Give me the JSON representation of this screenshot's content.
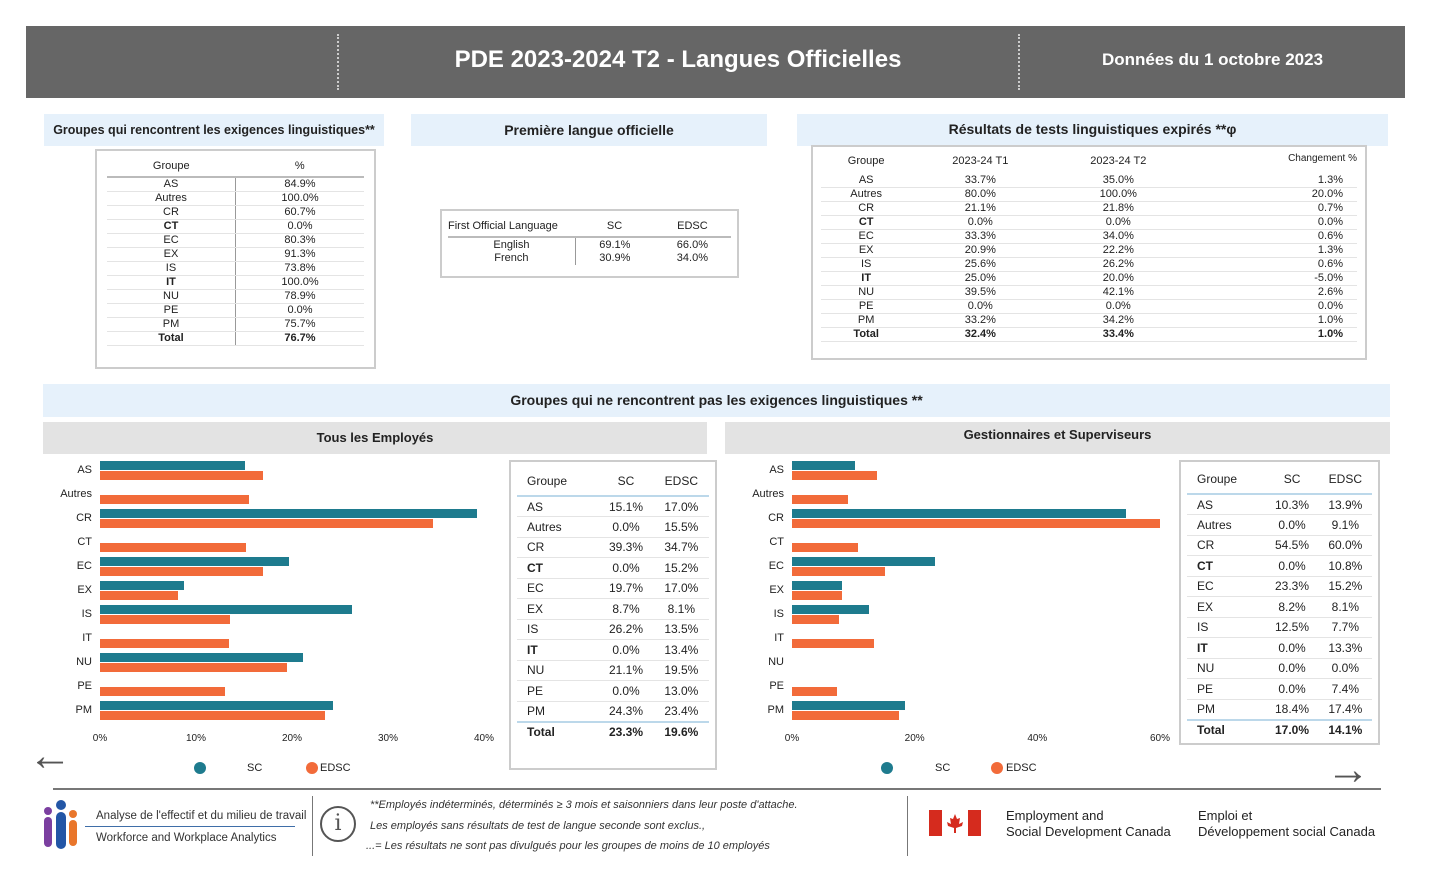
{
  "header": {
    "title": "PDE 2023-2024 T2 - Langues Officielles",
    "date": "Données du 1 octobre 2023"
  },
  "colors": {
    "sc": "#1e7b8e",
    "edsc": "#f26b3a",
    "header_bg": "#666666",
    "panel_bg": "#e6f1fb"
  },
  "meets": {
    "title": "Groupes qui rencontrent les exigences linguistiques**",
    "col_group": "Groupe",
    "col_pct": "%",
    "rows": [
      [
        "AS",
        "84.9%"
      ],
      [
        "Autres",
        "100.0%"
      ],
      [
        "CR",
        "60.7%"
      ],
      [
        "CT",
        "0.0%"
      ],
      [
        "EC",
        "80.3%"
      ],
      [
        "EX",
        "91.3%"
      ],
      [
        "IS",
        "73.8%"
      ],
      [
        "IT",
        "100.0%"
      ],
      [
        "NU",
        "78.9%"
      ],
      [
        "PE",
        "0.0%"
      ],
      [
        "PM",
        "75.7%"
      ],
      [
        "Total",
        "76.7%"
      ]
    ]
  },
  "first_lang": {
    "title": "Première langue officielle",
    "col_lang": "First Official Language",
    "col_sc": "SC",
    "col_edsc": "EDSC",
    "rows": [
      [
        "English",
        "69.1%",
        "66.0%"
      ],
      [
        "French",
        "30.9%",
        "34.0%"
      ]
    ]
  },
  "expired": {
    "title": "Résultats de tests linguistiques expirés **φ",
    "cols": [
      "Groupe",
      "2023-24 T1",
      "2023-24 T2",
      "Changement %"
    ],
    "rows": [
      [
        "AS",
        "33.7%",
        "35.0%",
        "1.3%"
      ],
      [
        "Autres",
        "80.0%",
        "100.0%",
        "20.0%"
      ],
      [
        "CR",
        "21.1%",
        "21.8%",
        "0.7%"
      ],
      [
        "CT",
        "0.0%",
        "0.0%",
        "0.0%"
      ],
      [
        "EC",
        "33.3%",
        "34.0%",
        "0.6%"
      ],
      [
        "EX",
        "20.9%",
        "22.2%",
        "1.3%"
      ],
      [
        "IS",
        "25.6%",
        "26.2%",
        "0.6%"
      ],
      [
        "IT",
        "25.0%",
        "20.0%",
        "-5.0%"
      ],
      [
        "NU",
        "39.5%",
        "42.1%",
        "2.6%"
      ],
      [
        "PE",
        "0.0%",
        "0.0%",
        "0.0%"
      ],
      [
        "PM",
        "33.2%",
        "34.2%",
        "1.0%"
      ],
      [
        "Total",
        "32.4%",
        "33.4%",
        "1.0%"
      ]
    ]
  },
  "not_meet": {
    "title": "Groupes qui ne rencontrent pas les exigences linguistiques **"
  },
  "chart_data": [
    {
      "type": "bar",
      "title": "Tous les Employés",
      "categories": [
        "AS",
        "Autres",
        "CR",
        "CT",
        "EC",
        "EX",
        "IS",
        "IT",
        "NU",
        "PE",
        "PM"
      ],
      "series": [
        {
          "name": "SC",
          "values": [
            15.1,
            0.0,
            39.3,
            0.0,
            19.7,
            8.7,
            26.2,
            0.0,
            21.1,
            0.0,
            24.3
          ]
        },
        {
          "name": "EDSC",
          "values": [
            17.0,
            15.5,
            34.7,
            15.2,
            17.0,
            8.1,
            13.5,
            13.4,
            19.5,
            13.0,
            23.4
          ]
        }
      ],
      "xlim": [
        0,
        40
      ],
      "xticks": [
        "0%",
        "10%",
        "20%",
        "30%",
        "40%"
      ],
      "legend": "bottom",
      "table": {
        "cols": [
          "Groupe",
          "SC",
          "EDSC"
        ],
        "rows": [
          [
            "AS",
            "15.1%",
            "17.0%"
          ],
          [
            "Autres",
            "0.0%",
            "15.5%"
          ],
          [
            "CR",
            "39.3%",
            "34.7%"
          ],
          [
            "CT",
            "0.0%",
            "15.2%"
          ],
          [
            "EC",
            "19.7%",
            "17.0%"
          ],
          [
            "EX",
            "8.7%",
            "8.1%"
          ],
          [
            "IS",
            "26.2%",
            "13.5%"
          ],
          [
            "IT",
            "0.0%",
            "13.4%"
          ],
          [
            "NU",
            "21.1%",
            "19.5%"
          ],
          [
            "PE",
            "0.0%",
            "13.0%"
          ],
          [
            "PM",
            "24.3%",
            "23.4%"
          ],
          [
            "Total",
            "23.3%",
            "19.6%"
          ]
        ]
      }
    },
    {
      "type": "bar",
      "title": "Gestionnaires et Superviseurs",
      "categories": [
        "AS",
        "Autres",
        "CR",
        "CT",
        "EC",
        "EX",
        "IS",
        "IT",
        "NU",
        "PE",
        "PM"
      ],
      "series": [
        {
          "name": "SC",
          "values": [
            10.3,
            0.0,
            54.5,
            0.0,
            23.3,
            8.2,
            12.5,
            0.0,
            0.0,
            0.0,
            18.4
          ]
        },
        {
          "name": "EDSC",
          "values": [
            13.9,
            9.1,
            60.0,
            10.8,
            15.2,
            8.1,
            7.7,
            13.3,
            0.0,
            7.4,
            17.4
          ]
        }
      ],
      "xlim": [
        0,
        60
      ],
      "xticks": [
        "0%",
        "20%",
        "40%",
        "60%"
      ],
      "legend": "bottom",
      "table": {
        "cols": [
          "Groupe",
          "SC",
          "EDSC"
        ],
        "rows": [
          [
            "AS",
            "10.3%",
            "13.9%"
          ],
          [
            "Autres",
            "0.0%",
            "9.1%"
          ],
          [
            "CR",
            "54.5%",
            "60.0%"
          ],
          [
            "CT",
            "0.0%",
            "10.8%"
          ],
          [
            "EC",
            "23.3%",
            "15.2%"
          ],
          [
            "EX",
            "8.2%",
            "8.1%"
          ],
          [
            "IS",
            "12.5%",
            "7.7%"
          ],
          [
            "IT",
            "0.0%",
            "13.3%"
          ],
          [
            "NU",
            "0.0%",
            "0.0%"
          ],
          [
            "PE",
            "0.0%",
            "7.4%"
          ],
          [
            "PM",
            "18.4%",
            "17.4%"
          ],
          [
            "Total",
            "17.0%",
            "14.1%"
          ]
        ]
      }
    }
  ],
  "footer": {
    "logo_fr": "Analyse de l'effectif et du milieu de travail",
    "logo_en": "Workforce and Workplace Analytics",
    "note1": "**Employés indéterminés, déterminés ≥ 3 mois et saisonniers dans leur poste d'attache.",
    "note2": "Les employés sans résultats de test de langue seconde sont exclus.,",
    "note3": "...= Les résultats ne sont pas divulgués pour les groupes de moins de 10 employés",
    "esdc_en1": "Employment and",
    "esdc_en2": "Social Development Canada",
    "esdc_fr1": "Emploi et",
    "esdc_fr2": "Développement social Canada"
  }
}
